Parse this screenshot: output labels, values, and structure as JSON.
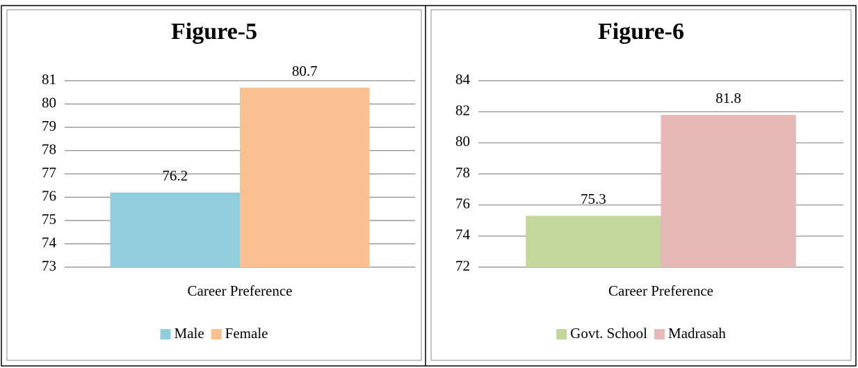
{
  "chart_data": [
    {
      "type": "bar",
      "title": "Figure-5",
      "categories": [
        "Career Preference"
      ],
      "series": [
        {
          "name": "Male",
          "color": "#92cddc",
          "values": [
            76.2
          ]
        },
        {
          "name": "Female",
          "color": "#fac090",
          "values": [
            80.7
          ]
        }
      ],
      "ylim": [
        73,
        81
      ],
      "yticks": [
        73,
        74,
        75,
        76,
        77,
        78,
        79,
        80,
        81
      ],
      "grid": true,
      "legend": "bottom"
    },
    {
      "type": "bar",
      "title": "Figure-6",
      "categories": [
        "Career Preference"
      ],
      "series": [
        {
          "name": "Govt. School",
          "color": "#c3d69b",
          "values": [
            75.3
          ]
        },
        {
          "name": "Madrasah",
          "color": "#e6b9b8",
          "values": [
            81.8
          ]
        }
      ],
      "ylim": [
        72,
        84
      ],
      "yticks": [
        72,
        74,
        76,
        78,
        80,
        82,
        84
      ],
      "grid": true,
      "legend": "bottom"
    }
  ]
}
